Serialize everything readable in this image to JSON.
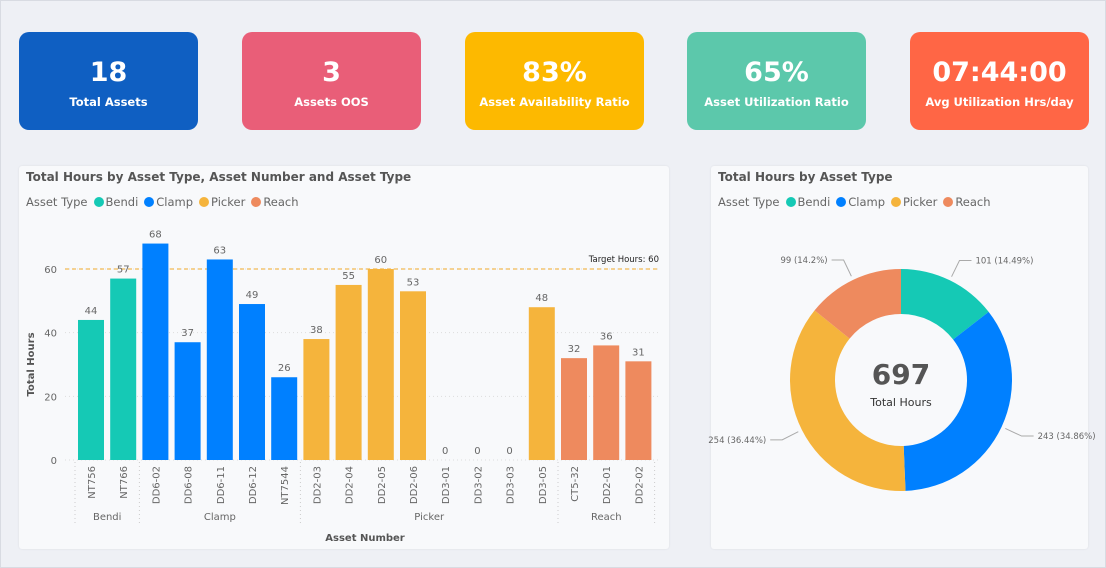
{
  "kpis": [
    {
      "value": "18",
      "label": "Total Assets",
      "color": "#0f5fc2"
    },
    {
      "value": "3",
      "label": "Assets OOS",
      "color": "#e95e78"
    },
    {
      "value": "83%",
      "label": "Asset Availability Ratio",
      "color": "#fdb900"
    },
    {
      "value": "65%",
      "label": "Asset Utilization Ratio",
      "color": "#5cc8ab"
    },
    {
      "value": "07:44:00",
      "label": "Avg Utilization Hrs/day",
      "color": "#ff6645"
    }
  ],
  "legend": {
    "title": "Asset Type",
    "items": [
      {
        "name": "Bendi",
        "color": "#15c9b5"
      },
      {
        "name": "Clamp",
        "color": "#0080ff"
      },
      {
        "name": "Picker",
        "color": "#f5b43c"
      },
      {
        "name": "Reach",
        "color": "#ee8a5e"
      }
    ]
  },
  "chart_data": [
    {
      "type": "bar",
      "title": "Total Hours by Asset Type, Asset Number and Asset Type",
      "xlabel": "Asset Number",
      "ylabel": "Total Hours",
      "ylim": [
        0,
        72
      ],
      "yticks": [
        0,
        20,
        40,
        60
      ],
      "grid": true,
      "legend": "top-left",
      "reference_line": {
        "value": 60,
        "label": "Target Hours: 60"
      },
      "categories": [
        "NT756",
        "NT766",
        "DD6-02",
        "DD6-08",
        "DD6-11",
        "DD6-12",
        "NT7544",
        "DD2-03",
        "DD2-04",
        "DD2-05",
        "DD2-06",
        "DD3-01",
        "DD3-02",
        "DD3-03",
        "DD3-05",
        "CT5-32",
        "DD2-01",
        "DD2-02"
      ],
      "groups": [
        "Bendi",
        "Bendi",
        "Clamp",
        "Clamp",
        "Clamp",
        "Clamp",
        "Clamp",
        "Picker",
        "Picker",
        "Picker",
        "Picker",
        "Picker",
        "Picker",
        "Picker",
        "Picker",
        "Reach",
        "Reach",
        "Reach"
      ],
      "group_labels": [
        "Bendi",
        "Clamp",
        "Picker",
        "Reach"
      ],
      "values": [
        44,
        57,
        68,
        37,
        63,
        49,
        26,
        38,
        55,
        60,
        53,
        0,
        0,
        0,
        48,
        32,
        36,
        31
      ]
    },
    {
      "type": "pie",
      "title": "Total Hours by Asset Type",
      "legend": "top-left",
      "center_value": "697",
      "center_label": "Total Hours",
      "slices": [
        {
          "name": "Bendi",
          "value": 101,
          "label": "101 (14.49%)"
        },
        {
          "name": "Clamp",
          "value": 243,
          "label": "243 (34.86%)"
        },
        {
          "name": "Picker",
          "value": 254,
          "label": "254 (36.44%)"
        },
        {
          "name": "Reach",
          "value": 99,
          "label": "99 (14.2%)"
        }
      ]
    }
  ]
}
